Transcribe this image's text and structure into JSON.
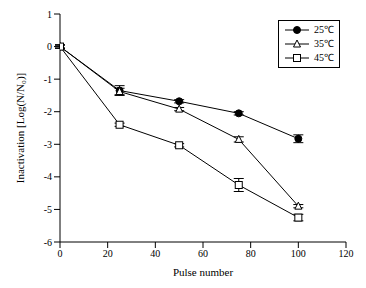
{
  "chart_data": {
    "type": "line",
    "x_label": "Pulse number",
    "y_label": "Inactivation [Log(N/N₀)]",
    "xlim": [
      0,
      120
    ],
    "xticks": [
      0,
      20,
      40,
      60,
      80,
      100,
      120
    ],
    "ylim": [
      -6,
      1
    ],
    "yticks": [
      -6,
      -5,
      -4,
      -3,
      -2,
      -1,
      0,
      1
    ],
    "legend": "upper-right",
    "x": [
      0,
      25,
      50,
      75,
      100
    ],
    "series": [
      {
        "name": "25℃",
        "color": "#000000",
        "marker": "circle",
        "values": [
          0,
          -1.35,
          -1.68,
          -2.05,
          -2.83
        ],
        "errors": [
          0.05,
          0.15,
          0.05,
          0.05,
          0.12
        ]
      },
      {
        "name": "35℃",
        "color": "#000000",
        "marker": "triangle-open",
        "values": [
          0,
          -1.38,
          -1.92,
          -2.85,
          -4.9
        ],
        "errors": [
          0.05,
          0.1,
          0.05,
          0.08,
          0.05
        ]
      },
      {
        "name": "45℃",
        "color": "#000000",
        "marker": "square-open",
        "values": [
          0,
          -2.4,
          -3.03,
          -4.25,
          -5.25
        ],
        "errors": [
          0.05,
          0.05,
          0.05,
          0.2,
          0.1
        ]
      }
    ]
  }
}
